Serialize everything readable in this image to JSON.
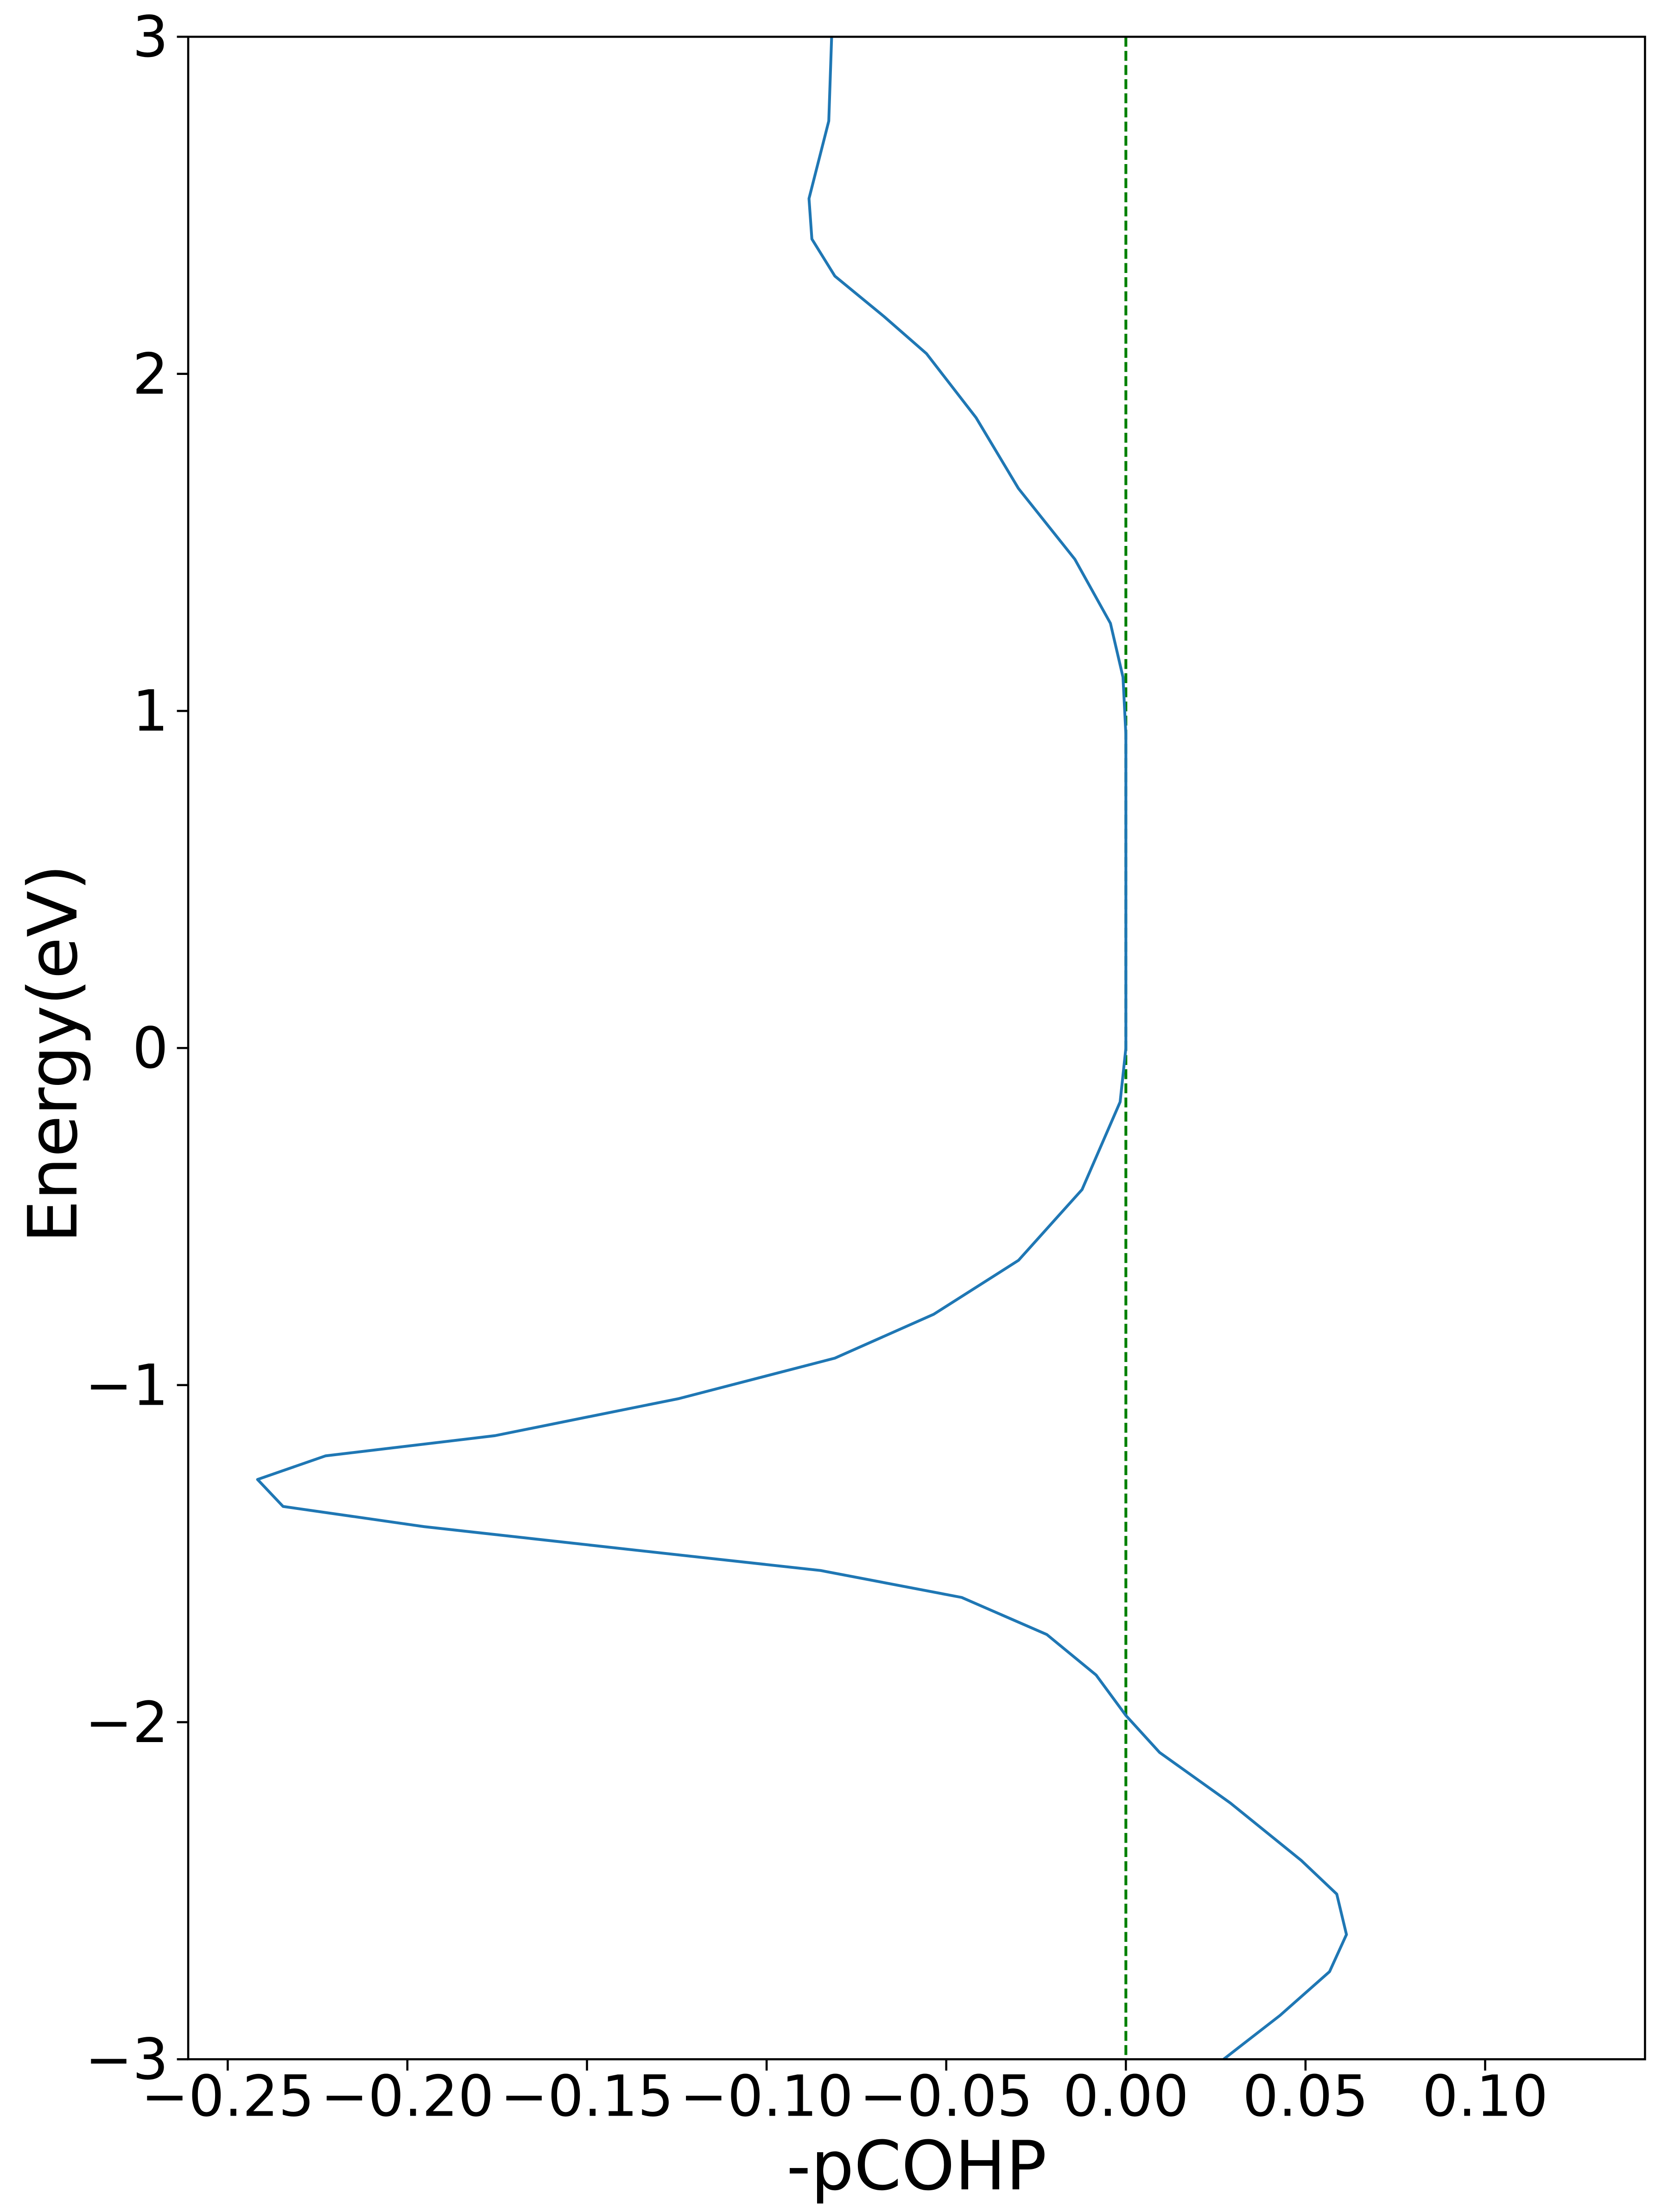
{
  "chart_data": {
    "type": "line",
    "x_label": "-pCOHP",
    "y_label": "Energy(eV)",
    "orientation": "vertical",
    "y": [
      3,
      2.75,
      2.52,
      2.4,
      2.29,
      2.17,
      2.06,
      1.87,
      1.66,
      1.45,
      1.26,
      1.1,
      0.93,
      0,
      -0.16,
      -0.42,
      -0.63,
      -0.79,
      -0.92,
      -1.04,
      -1.15,
      -1.21,
      -1.28,
      -1.36,
      -1.42,
      -1.49,
      -1.55,
      -1.63,
      -1.74,
      -1.86,
      -1.98,
      -2.09,
      -2.24,
      -2.41,
      -2.51,
      -2.63,
      -2.74,
      -2.87,
      -3
    ],
    "series": [
      {
        "color": "#1f77b4",
        "values": [
          -0.0819,
          -0.0827,
          -0.0882,
          -0.0874,
          -0.081,
          -0.0673,
          -0.0555,
          -0.0417,
          -0.0299,
          -0.0142,
          -0.0043,
          -0.0008,
          0,
          0,
          -0.0016,
          -0.0122,
          -0.0299,
          -0.0535,
          -0.081,
          -0.1244,
          -0.1756,
          -0.2228,
          -0.2417,
          -0.2346,
          -0.1953,
          -0.1362,
          -0.085,
          -0.0457,
          -0.022,
          -0.0083,
          0,
          0.0094,
          0.0291,
          0.0488,
          0.0587,
          0.0614,
          0.0567,
          0.0429,
          0.0272
        ]
      }
    ],
    "xlim": [
      -0.261,
      0.1445
    ],
    "ylim": [
      -3,
      3
    ],
    "xticks": [
      {
        "value": -0.25,
        "label": "−0.25"
      },
      {
        "value": -0.2,
        "label": "−0.20"
      },
      {
        "value": -0.15,
        "label": "−0.15"
      },
      {
        "value": -0.1,
        "label": "−0.10"
      },
      {
        "value": -0.05,
        "label": "−0.05"
      },
      {
        "value": 0,
        "label": "0.00"
      },
      0.05,
      {
        "value": 0.1,
        "label": "0.10"
      }
    ],
    "yticks": [
      {
        "value": -3,
        "label": "−3"
      },
      {
        "value": -2,
        "label": "−2"
      },
      {
        "value": -1,
        "label": "−1"
      },
      0,
      1,
      2,
      3
    ],
    "vline": {
      "value": 0,
      "color": "#008000",
      "dashed": true
    },
    "grid": false
  }
}
